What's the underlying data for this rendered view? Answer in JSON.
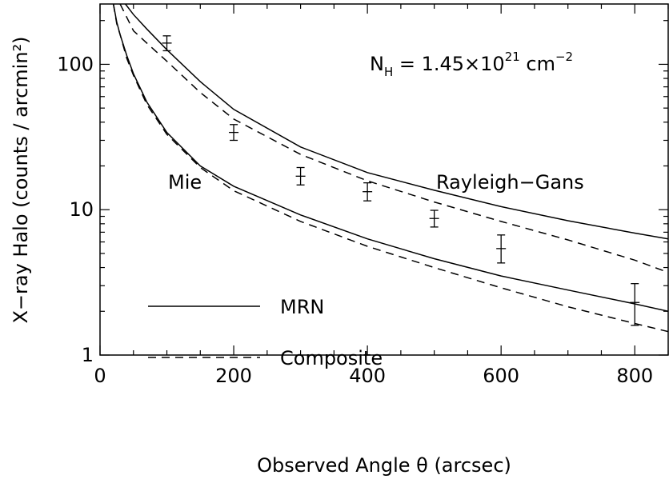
{
  "chart_data": {
    "type": "line",
    "xlabel": "Observed Angle θ (arcsec)",
    "ylabel": "X−ray Halo (counts / arcmin²)",
    "xlim": [
      0,
      850
    ],
    "ylim": [
      1,
      260
    ],
    "yscale": "log",
    "x_ticks": [
      "0",
      "200",
      "400",
      "600",
      "800"
    ],
    "y_ticks": [
      "1",
      "10",
      "100"
    ],
    "annotation": {
      "main": "N",
      "sub": "H",
      "rest": " = 1.45×10",
      "sup": "21",
      "unit": " cm",
      "unit_sup": "−2"
    },
    "labels": {
      "mie": "Mie",
      "rayleigh": "Rayleigh−Gans"
    },
    "legend": [
      {
        "name": "MRN",
        "style": "solid"
      },
      {
        "name": "Composite",
        "style": "dashed"
      }
    ],
    "data_points": [
      {
        "x": 100,
        "y": 140,
        "y_low": 124,
        "y_high": 157
      },
      {
        "x": 200,
        "y": 34,
        "y_low": 30,
        "y_high": 38.5
      },
      {
        "x": 300,
        "y": 17,
        "y_low": 14.8,
        "y_high": 19.5
      },
      {
        "x": 400,
        "y": 13.3,
        "y_low": 11.5,
        "y_high": 15.3
      },
      {
        "x": 500,
        "y": 8.7,
        "y_low": 7.6,
        "y_high": 9.9
      },
      {
        "x": 600,
        "y": 5.4,
        "y_low": 4.3,
        "y_high": 6.7
      },
      {
        "x": 800,
        "y": 2.3,
        "y_low": 1.6,
        "y_high": 3.1
      }
    ],
    "series": [
      {
        "style": "solid",
        "x": [
          38,
          50,
          70,
          100,
          150,
          200,
          300,
          400,
          500,
          600,
          700,
          800,
          850
        ],
        "y": [
          260,
          220,
          175,
          126,
          76,
          49,
          27,
          18,
          13.6,
          10.5,
          8.4,
          6.9,
          6.3
        ]
      },
      {
        "style": "dashed",
        "x": [
          30,
          50,
          70,
          100,
          150,
          200,
          300,
          400,
          500,
          600,
          700,
          800,
          850
        ],
        "y": [
          260,
          170,
          140,
          105,
          64,
          42,
          24,
          15.8,
          11.3,
          8.3,
          6.2,
          4.5,
          3.7
        ]
      },
      {
        "style": "solid",
        "x": [
          20,
          25,
          30,
          40,
          50,
          70,
          100,
          150,
          200,
          300,
          400,
          500,
          600,
          700,
          800,
          850
        ],
        "y": [
          260,
          195,
          160,
          115,
          86,
          55,
          34,
          20,
          14.5,
          9.2,
          6.3,
          4.6,
          3.5,
          2.8,
          2.25,
          2.0
        ]
      },
      {
        "style": "dashed",
        "x": [
          20,
          25,
          30,
          40,
          50,
          70,
          100,
          150,
          200,
          300,
          400,
          500,
          600,
          700,
          800,
          850
        ],
        "y": [
          260,
          190,
          160,
          110,
          84,
          53,
          33,
          19.5,
          13.5,
          8.3,
          5.6,
          4.0,
          2.9,
          2.15,
          1.65,
          1.45
        ]
      }
    ]
  }
}
